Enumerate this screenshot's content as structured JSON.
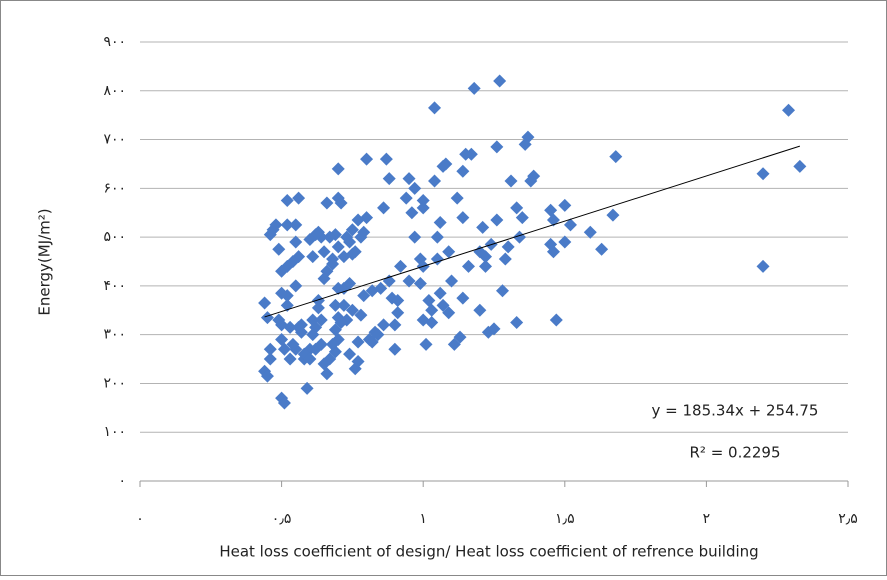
{
  "chart_data": {
    "type": "scatter",
    "xlabel": "Heat loss coefficient of design/ Heat loss coefficient of refrence building",
    "ylabel": "Energy(MJ/m²)",
    "color": "#4a7bc8",
    "grid": true,
    "xlim": [
      0,
      2.5
    ],
    "ylim": [
      0,
      900
    ],
    "xticks": [
      {
        "value": 0,
        "label": "۰"
      },
      {
        "value": 0.5,
        "label": "۰٫۵"
      },
      {
        "value": 1,
        "label": "۱"
      },
      {
        "value": 1.5,
        "label": "۱٫۵"
      },
      {
        "value": 2,
        "label": "۲"
      },
      {
        "value": 2.5,
        "label": "۲٫۵"
      }
    ],
    "yticks": [
      {
        "value": 0,
        "label": "۰"
      },
      {
        "value": 100,
        "label": "۱۰۰"
      },
      {
        "value": 200,
        "label": "۲۰۰"
      },
      {
        "value": 300,
        "label": "۳۰۰"
      },
      {
        "value": 400,
        "label": "۴۰۰"
      },
      {
        "value": 500,
        "label": "۵۰۰"
      },
      {
        "value": 600,
        "label": "۶۰۰"
      },
      {
        "value": 700,
        "label": "۷۰۰"
      },
      {
        "value": 800,
        "label": "۸۰۰"
      },
      {
        "value": 900,
        "label": "۹۰۰"
      }
    ],
    "x": [
      2.29,
      2.33,
      2.2,
      2.2,
      1.68,
      1.67,
      1.59,
      1.63,
      1.52,
      1.5,
      1.5,
      1.45,
      1.46,
      1.46,
      1.45,
      1.47,
      1.37,
      1.36,
      1.38,
      1.39,
      1.35,
      1.34,
      1.33,
      1.3,
      1.29,
      1.28,
      1.31,
      1.27,
      1.26,
      1.26,
      1.22,
      1.22,
      1.21,
      1.2,
      1.23,
      1.25,
      1.18,
      1.17,
      1.15,
      1.14,
      1.14,
      1.12,
      1.16,
      1.13,
      1.11,
      1.04,
      1.02,
      1.07,
      1.08,
      1.05,
      1.03,
      1.04,
      1.05,
      1.09,
      1.06,
      1.07,
      1.09,
      1.03,
      1.01,
      1.0,
      1.0,
      0.99,
      1.0,
      0.97,
      0.96,
      0.95,
      0.94,
      0.95,
      0.97,
      0.99,
      0.92,
      0.88,
      0.87,
      0.86,
      0.89,
      0.9,
      0.91,
      0.88,
      0.85,
      0.83,
      0.82,
      0.81,
      0.82,
      0.8,
      0.8,
      0.77,
      0.78,
      0.79,
      0.75,
      0.74,
      0.75,
      0.72,
      0.73,
      0.72,
      0.74,
      0.75,
      0.73,
      0.77,
      0.74,
      0.76,
      0.7,
      0.7,
      0.71,
      0.69,
      0.7,
      0.67,
      0.68,
      0.68,
      0.69,
      0.7,
      0.71,
      0.72,
      0.7,
      0.69,
      0.68,
      0.67,
      0.66,
      0.64,
      0.65,
      0.65,
      0.66,
      0.62,
      0.6,
      0.61,
      0.63,
      0.63,
      0.64,
      0.62,
      0.61,
      0.62,
      0.66,
      0.65,
      0.59,
      0.6,
      0.58,
      0.57,
      0.57,
      0.56,
      0.55,
      0.55,
      0.56,
      0.54,
      0.55,
      0.56,
      0.55,
      0.54,
      0.53,
      0.52,
      0.52,
      0.52,
      0.5,
      0.5,
      0.52,
      0.5,
      0.5,
      0.51,
      0.49,
      0.48,
      0.46,
      0.47,
      0.46,
      0.45,
      0.46,
      0.44,
      0.44,
      0.45,
      0.5,
      0.51,
      0.53,
      0.49,
      0.52,
      0.58,
      0.6,
      0.61,
      0.63,
      0.64,
      0.69,
      0.7,
      0.76,
      0.77,
      0.78,
      0.79,
      0.84,
      0.86,
      0.9,
      0.91,
      1.0,
      1.06,
      1.1,
      1.14,
      1.2,
      1.24,
      1.33
    ],
    "values": [
      760,
      645,
      630,
      440,
      665,
      545,
      510,
      475,
      525,
      565,
      490,
      555,
      535,
      470,
      485,
      330,
      705,
      690,
      615,
      625,
      540,
      500,
      325,
      480,
      455,
      390,
      615,
      820,
      535,
      685,
      440,
      460,
      520,
      470,
      305,
      312,
      805,
      670,
      670,
      540,
      635,
      580,
      440,
      295,
      280,
      765,
      370,
      645,
      650,
      500,
      325,
      615,
      455,
      470,
      385,
      360,
      345,
      350,
      280,
      575,
      560,
      455,
      440,
      500,
      550,
      620,
      580,
      410,
      600,
      405,
      440,
      620,
      660,
      560,
      375,
      320,
      345,
      410,
      395,
      305,
      390,
      290,
      285,
      540,
      660,
      535,
      500,
      510,
      515,
      490,
      465,
      460,
      500,
      395,
      405,
      350,
      330,
      285,
      260,
      230,
      640,
      580,
      570,
      505,
      480,
      500,
      455,
      445,
      310,
      335,
      325,
      360,
      290,
      265,
      280,
      250,
      570,
      500,
      470,
      415,
      430,
      505,
      495,
      460,
      370,
      355,
      330,
      315,
      300,
      270,
      220,
      240,
      190,
      270,
      250,
      305,
      320,
      580,
      525,
      490,
      460,
      450,
      400,
      315,
      270,
      280,
      250,
      440,
      575,
      525,
      430,
      385,
      360,
      320,
      290,
      270,
      475,
      525,
      505,
      515,
      270,
      335,
      250,
      365,
      225,
      215,
      170,
      160,
      315,
      330,
      380,
      260,
      250,
      330,
      510,
      280,
      360,
      395,
      470,
      245,
      340,
      380,
      300,
      320,
      270,
      370,
      330,
      530,
      410,
      375,
      350,
      485,
      560
    ],
    "trendline": {
      "slope": 185.34,
      "intercept": 254.75,
      "equation": "y = 185.34x + 254.75",
      "r2": "R² = 0.2295"
    }
  }
}
